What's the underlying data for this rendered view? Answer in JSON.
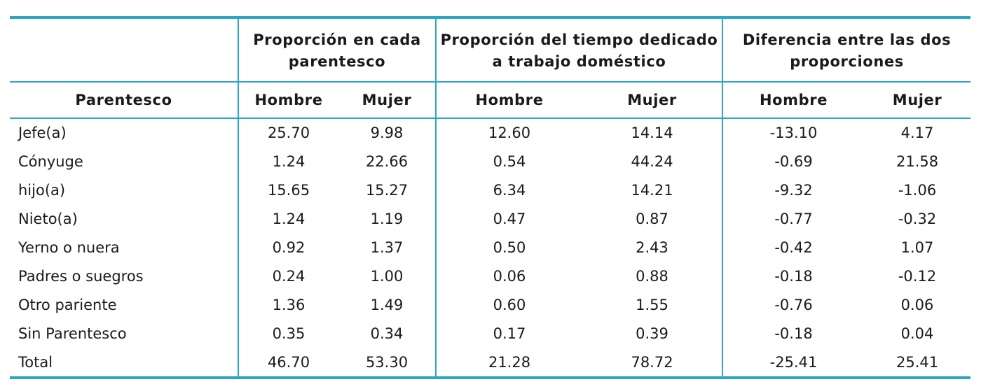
{
  "table": {
    "group_headers": [
      "Proporción en cada parentesco",
      "Proporción del tiempo dedicado a trabajo doméstico",
      "Diferencia entre las dos proporciones"
    ],
    "group_header_lines": [
      [
        "Proporción en cada",
        "parentesco"
      ],
      [
        "Proporción del tiempo dedicado",
        "a trabajo doméstico"
      ],
      [
        "Diferencia entre las dos",
        "proporciones"
      ]
    ],
    "row_header_label": "Parentesco",
    "sub_headers": [
      "Hombre",
      "Mujer",
      "Hombre",
      "Mujer",
      "Hombre",
      "Mujer"
    ],
    "rows": [
      {
        "label": "Jefe(a)",
        "values": [
          "25.70",
          "9.98",
          "12.60",
          "14.14",
          "-13.10",
          "4.17"
        ]
      },
      {
        "label": "Cónyuge",
        "values": [
          "1.24",
          "22.66",
          "0.54",
          "44.24",
          "-0.69",
          "21.58"
        ]
      },
      {
        "label": "hijo(a)",
        "values": [
          "15.65",
          "15.27",
          "6.34",
          "14.21",
          "-9.32",
          "-1.06"
        ]
      },
      {
        "label": "Nieto(a)",
        "values": [
          "1.24",
          "1.19",
          "0.47",
          "0.87",
          "-0.77",
          "-0.32"
        ]
      },
      {
        "label": "Yerno o nuera",
        "values": [
          "0.92",
          "1.37",
          "0.50",
          "2.43",
          "-0.42",
          "1.07"
        ]
      },
      {
        "label": "Padres o suegros",
        "values": [
          "0.24",
          "1.00",
          "0.06",
          "0.88",
          "-0.18",
          "-0.12"
        ]
      },
      {
        "label": "Otro pariente",
        "values": [
          "1.36",
          "1.49",
          "0.60",
          "1.55",
          "-0.76",
          "0.06"
        ]
      },
      {
        "label": "Sin Parentesco",
        "values": [
          "0.35",
          "0.34",
          "0.17",
          "0.39",
          "-0.18",
          "0.04"
        ]
      },
      {
        "label": "Total",
        "values": [
          "46.70",
          "53.30",
          "21.28",
          "78.72",
          "-25.41",
          "25.41"
        ]
      }
    ]
  },
  "colors": {
    "rule": "#2aa7c4",
    "text": "#1a1a1a"
  }
}
